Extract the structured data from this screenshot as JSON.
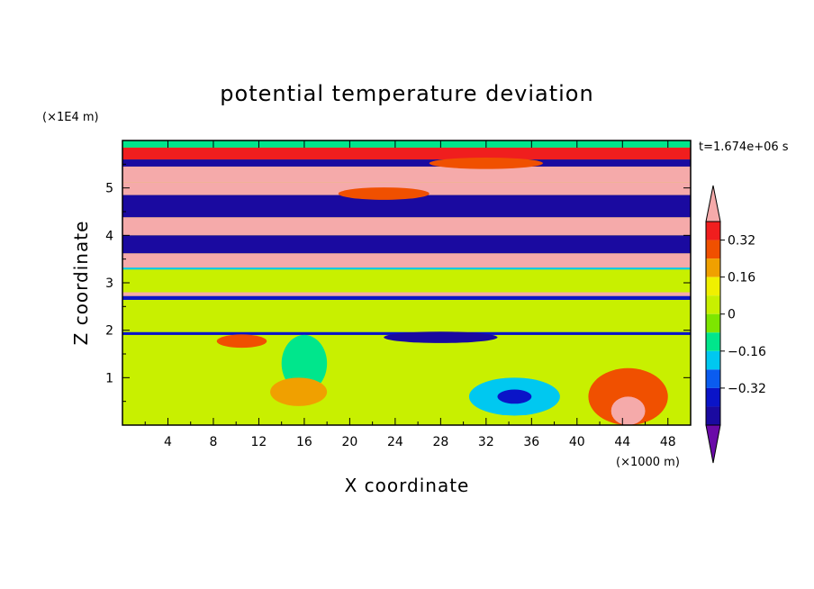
{
  "chart_data": {
    "type": "heatmap",
    "title": "potential temperature deviation",
    "xlabel": "X coordinate",
    "ylabel": "Z coordinate",
    "x_unit": "(×1000 m)",
    "y_unit": "(×1E4 m)",
    "time_label": "t=1.674e+06 s",
    "xlim": [
      0,
      50
    ],
    "ylim": [
      0,
      6
    ],
    "x_ticks": [
      "4",
      "8",
      "12",
      "16",
      "20",
      "24",
      "28",
      "32",
      "36",
      "40",
      "44",
      "48"
    ],
    "y_ticks": [
      "1",
      "2",
      "3",
      "4",
      "5"
    ],
    "colorbar": {
      "levels": [
        -0.48,
        -0.4,
        -0.32,
        -0.24,
        -0.16,
        -0.08,
        0,
        0.08,
        0.16,
        0.24,
        0.32,
        0.4
      ],
      "colors": [
        "#6a0aa8",
        "#1a0aa0",
        "#0a14c8",
        "#0a5cf0",
        "#00c8f0",
        "#00e68c",
        "#7de600",
        "#c8f000",
        "#f0f000",
        "#f0a000",
        "#f05000",
        "#f01e1e",
        "#f5aaaa"
      ],
      "tick_labels": [
        "0.32",
        "0.16",
        "0",
        "-0.16",
        "-0.32"
      ]
    },
    "background_level": 0.04,
    "bands": [
      {
        "z0": 5.85,
        "z1": 6.0,
        "value": -0.1
      },
      {
        "z0": 5.6,
        "z1": 5.85,
        "value": 0.35
      },
      {
        "z0": 5.45,
        "z1": 5.6,
        "value": -0.44
      },
      {
        "z0": 5.12,
        "z1": 5.45,
        "value": 0.42
      },
      {
        "z0": 4.85,
        "z1": 5.12,
        "value": 0.42
      },
      {
        "z0": 4.38,
        "z1": 4.85,
        "value": -0.46
      },
      {
        "z0": 4.0,
        "z1": 4.38,
        "value": 0.42
      },
      {
        "z0": 3.62,
        "z1": 4.0,
        "value": -0.46
      },
      {
        "z0": 3.32,
        "z1": 3.62,
        "value": 0.42
      },
      {
        "z0": 3.28,
        "z1": 3.32,
        "value": -0.2
      },
      {
        "z0": 2.72,
        "z1": 2.8,
        "value": 0.42
      },
      {
        "z0": 2.64,
        "z1": 2.72,
        "value": -0.4
      },
      {
        "z0": 1.9,
        "z1": 1.96,
        "value": -0.4
      }
    ],
    "blobs": [
      {
        "x": 32,
        "z": 5.52,
        "rx": 5,
        "rz": 0.12,
        "value": 0.3
      },
      {
        "x": 23,
        "z": 4.88,
        "rx": 4,
        "rz": 0.13,
        "value": 0.3
      },
      {
        "x": 10.5,
        "z": 1.77,
        "rx": 2.2,
        "rz": 0.14,
        "value": 0.3
      },
      {
        "x": 44.5,
        "z": 0.6,
        "rx": 3.5,
        "rz": 0.6,
        "value": 0.3
      },
      {
        "x": 44.5,
        "z": 0.3,
        "rx": 1.5,
        "rz": 0.3,
        "value": 0.42
      },
      {
        "x": 34.5,
        "z": 0.6,
        "rx": 4,
        "rz": 0.4,
        "value": -0.2
      },
      {
        "x": 34.5,
        "z": 0.6,
        "rx": 1.5,
        "rz": 0.15,
        "value": -0.36
      },
      {
        "x": 16,
        "z": 1.3,
        "rx": 2,
        "rz": 0.6,
        "value": -0.12
      },
      {
        "x": 15.5,
        "z": 0.7,
        "rx": 2.5,
        "rz": 0.3,
        "value": 0.2
      },
      {
        "x": 28,
        "z": 1.85,
        "rx": 5,
        "rz": 0.12,
        "value": -0.44
      }
    ]
  }
}
